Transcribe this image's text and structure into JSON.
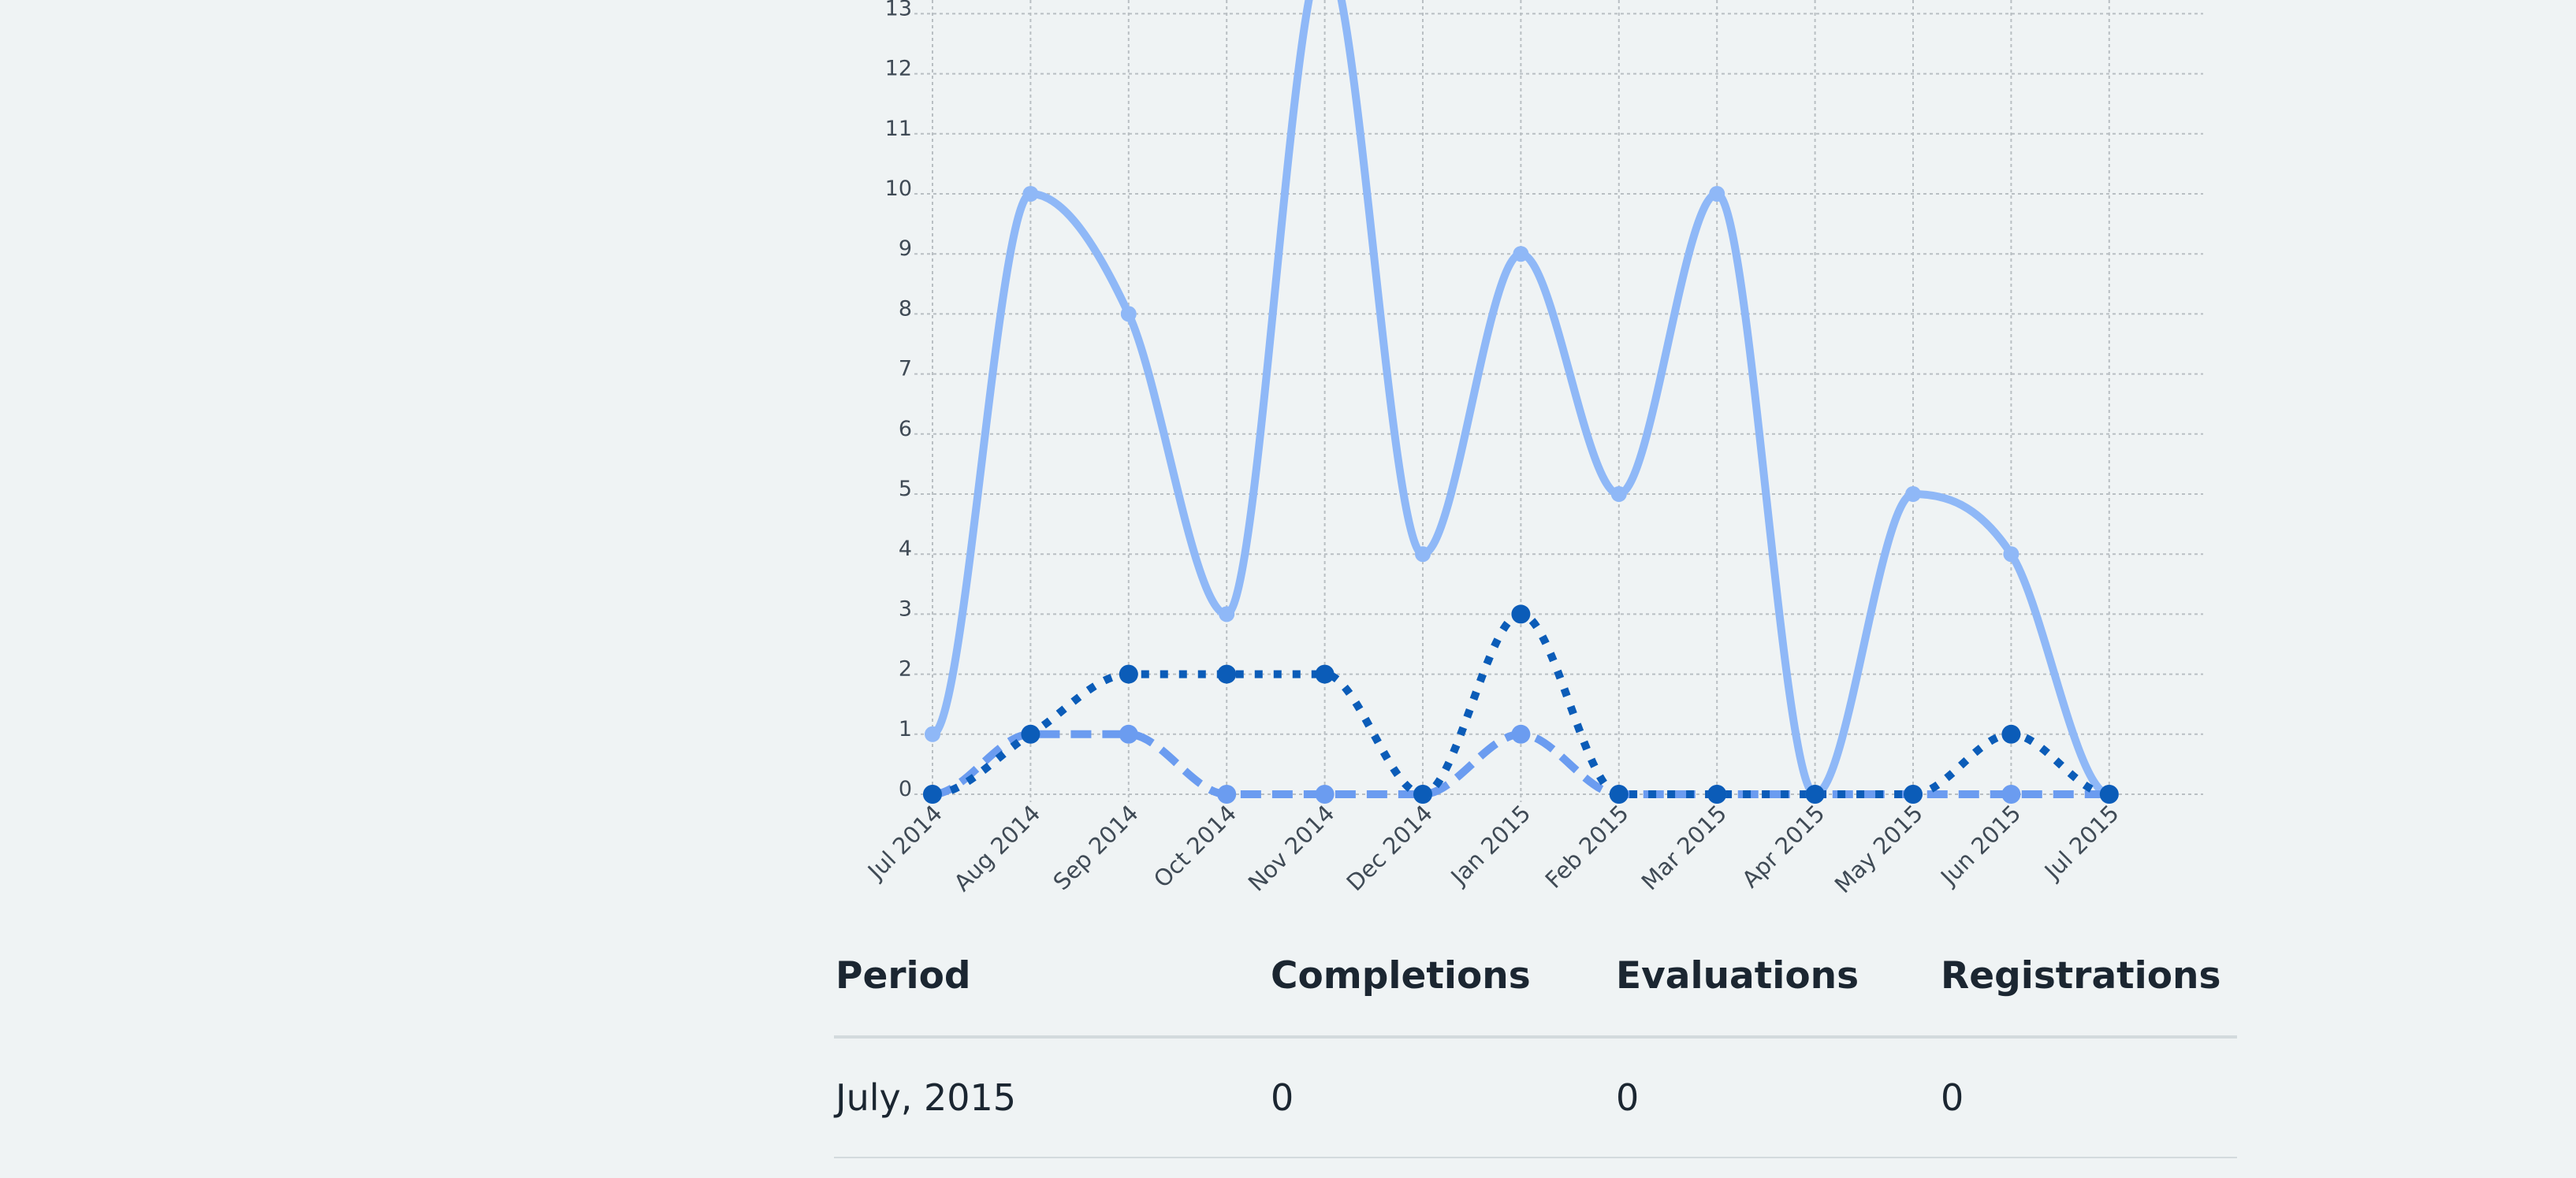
{
  "chart_data": {
    "type": "line",
    "x": [
      "Jul 2014",
      "Aug 2014",
      "Sep 2014",
      "Oct 2014",
      "Nov 2014",
      "Dec 2014",
      "Jan 2015",
      "Feb 2015",
      "Mar 2015",
      "Apr 2015",
      "May 2015",
      "Jun 2015",
      "Jul 2015"
    ],
    "y_ticks": [
      "0",
      "1",
      "2",
      "3",
      "4",
      "5",
      "6",
      "7",
      "8",
      "9",
      "10",
      "11",
      "12",
      "13"
    ],
    "ylim": [
      0,
      13
    ],
    "grid": true,
    "series": [
      {
        "values": [
          1,
          10,
          8,
          3,
          14,
          4,
          9,
          5,
          10,
          0,
          5,
          4,
          0
        ],
        "color": "#8fb8f7",
        "style": "solid"
      },
      {
        "values": [
          0,
          1,
          2,
          2,
          2,
          0,
          3,
          0,
          0,
          0,
          0,
          1,
          0
        ],
        "color": "#0b5cb8",
        "style": "dotted"
      },
      {
        "values": [
          0,
          1,
          1,
          0,
          0,
          0,
          1,
          0,
          0,
          0,
          0,
          0,
          0
        ],
        "color": "#6b9cf0",
        "style": "dashed"
      }
    ]
  },
  "table": {
    "headers": [
      "Period",
      "Completions",
      "Evaluations",
      "Registrations"
    ],
    "rows": [
      [
        "July, 2015",
        "0",
        "0",
        "0"
      ]
    ]
  }
}
